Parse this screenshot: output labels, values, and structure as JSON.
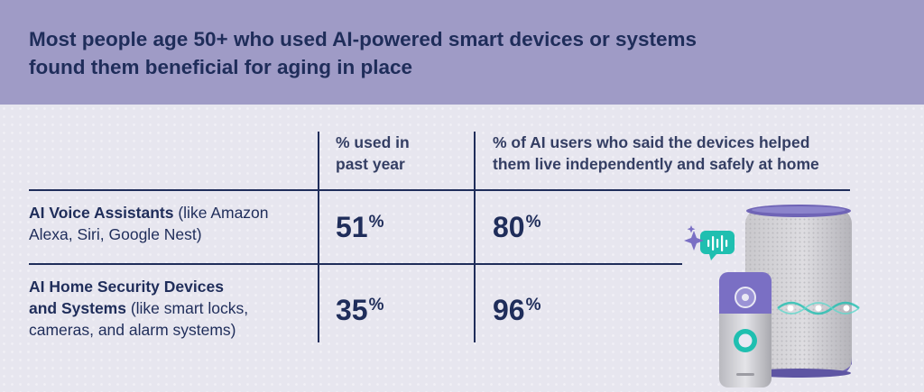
{
  "title": "Most people age 50+ who used AI-powered smart devices or systems found them beneficial for aging in place",
  "colors": {
    "header": "#9f9bc6",
    "background": "#e7e6ef",
    "text": "#1f2d5a",
    "accent": "#1fbfb0"
  },
  "icons": [
    "smart-speaker-icon",
    "video-doorbell-icon",
    "voice-chat-bubble-icon",
    "sparkle-icon"
  ],
  "chart_data": {
    "type": "table",
    "title": "Most people age 50+ who used AI-powered smart devices or systems found them beneficial for aging in place",
    "columns": [
      {
        "line1": "% used in",
        "line2": "past year"
      },
      {
        "line1": "% of AI users who said the devices helped",
        "line2": "them live independently and safely at home"
      }
    ],
    "rows": [
      {
        "name_bold": "AI Voice Assistants",
        "name_rest_1": " (like Amazon",
        "name_rest_2": "Alexa, Siri, Google Nest)",
        "used_past_year": 51,
        "helped_independently": 80
      },
      {
        "name_bold_1": "AI Home Security Devices",
        "name_bold_2": "and Systems",
        "name_rest_2": " (like smart locks,",
        "name_rest_3": "cameras, and alarm systems)",
        "used_past_year": 35,
        "helped_independently": 96
      }
    ],
    "unit": "%"
  }
}
